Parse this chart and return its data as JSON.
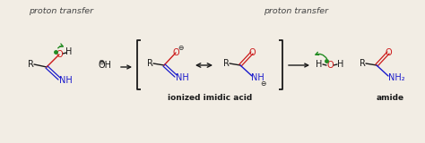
{
  "bg_color": "#f2ede4",
  "text_color": "#1a1a1a",
  "blue_color": "#1a1acc",
  "red_color": "#cc1a1a",
  "green_color": "#228B22",
  "gray_color": "#444444",
  "proton_transfer_1": "proton transfer",
  "proton_transfer_2": "proton transfer",
  "label_ionized": "ionized imidic acid",
  "label_amide": "amide",
  "figsize": [
    4.74,
    1.6
  ],
  "dpi": 100
}
